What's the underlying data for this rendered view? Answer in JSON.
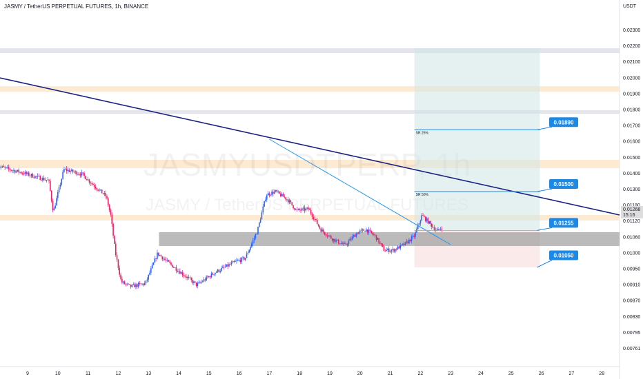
{
  "title": "JASMY / TetherUS PERPETUAL FUTURES, 1h, BINANCE",
  "watermark": {
    "symbol": "JASMYUSDTPERP, 1h",
    "name": "JASMY / TetherUS PERPETUAL FUTURES"
  },
  "colors": {
    "up": "#2962ff",
    "down": "#e91e63",
    "trendline": "#1a237e",
    "wedge_line": "#2196f3",
    "level_line": "#1e88e5",
    "tag_bg": "#1e88e5",
    "target_zone": "#cfe6e6",
    "stop_zone": "#f8dcdc",
    "support_zone": "#9e9e9e",
    "resistance_band": "#fde5c7",
    "price_tag": "#dddddd"
  },
  "chart_data": {
    "type": "candlestick",
    "title": "JASMY / TetherUS PERPETUAL FUTURES, 1h, BINANCE",
    "y_unit": "USDT",
    "x_ticks": [
      "9",
      "10",
      "11",
      "12",
      "13",
      "14",
      "15",
      "16",
      "17",
      "18",
      "19",
      "20",
      "21",
      "22",
      "23",
      "24",
      "25",
      "26",
      "27",
      "28"
    ],
    "y_ticks": [
      "0.02300",
      "0.02200",
      "0.02100",
      "0.02000",
      "0.01900",
      "0.01800",
      "0.01700",
      "0.01600",
      "0.01500",
      "0.01400",
      "0.01300",
      "0.01180",
      "0.01120",
      "0.01060",
      "0.01000",
      "0.00950",
      "0.00910",
      "0.00870",
      "0.00830",
      "0.00795",
      "0.00761"
    ],
    "last_price": "0.01268",
    "countdown": "15:16",
    "levels": [
      {
        "value": "0.01890",
        "label": "SR 25%"
      },
      {
        "value": "0.01500",
        "label": "SR 50%"
      },
      {
        "value": "0.01255",
        "label": ""
      },
      {
        "value": "0.01050",
        "label": ""
      }
    ],
    "anchors": [
      {
        "day": 8.0,
        "price": 0.0166
      },
      {
        "day": 8.8,
        "price": 0.0162
      },
      {
        "day": 9.7,
        "price": 0.0157
      },
      {
        "day": 9.85,
        "price": 0.0137
      },
      {
        "day": 10.2,
        "price": 0.0164
      },
      {
        "day": 10.8,
        "price": 0.0161
      },
      {
        "day": 11.3,
        "price": 0.0152
      },
      {
        "day": 11.6,
        "price": 0.0147
      },
      {
        "day": 11.75,
        "price": 0.0135
      },
      {
        "day": 11.9,
        "price": 0.0112
      },
      {
        "day": 12.1,
        "price": 0.0093
      },
      {
        "day": 12.4,
        "price": 0.009
      },
      {
        "day": 12.9,
        "price": 0.0092
      },
      {
        "day": 13.3,
        "price": 0.0111
      },
      {
        "day": 13.6,
        "price": 0.0106
      },
      {
        "day": 14.0,
        "price": 0.01
      },
      {
        "day": 14.6,
        "price": 0.0091
      },
      {
        "day": 15.2,
        "price": 0.0099
      },
      {
        "day": 15.8,
        "price": 0.0105
      },
      {
        "day": 16.2,
        "price": 0.0108
      },
      {
        "day": 16.6,
        "price": 0.0125
      },
      {
        "day": 16.9,
        "price": 0.0148
      },
      {
        "day": 17.2,
        "price": 0.015
      },
      {
        "day": 17.6,
        "price": 0.0145
      },
      {
        "day": 17.9,
        "price": 0.0138
      },
      {
        "day": 18.3,
        "price": 0.0139
      },
      {
        "day": 18.7,
        "price": 0.0126
      },
      {
        "day": 19.1,
        "price": 0.012
      },
      {
        "day": 19.5,
        "price": 0.0116
      },
      {
        "day": 19.9,
        "price": 0.0124
      },
      {
        "day": 20.2,
        "price": 0.0126
      },
      {
        "day": 20.5,
        "price": 0.0122
      },
      {
        "day": 20.8,
        "price": 0.0113
      },
      {
        "day": 21.1,
        "price": 0.0113
      },
      {
        "day": 21.5,
        "price": 0.0117
      },
      {
        "day": 21.8,
        "price": 0.0122
      },
      {
        "day": 22.05,
        "price": 0.0135
      },
      {
        "day": 22.4,
        "price": 0.0128
      },
      {
        "day": 22.55,
        "price": 0.0125
      },
      {
        "day": 22.75,
        "price": 0.0128
      }
    ]
  }
}
